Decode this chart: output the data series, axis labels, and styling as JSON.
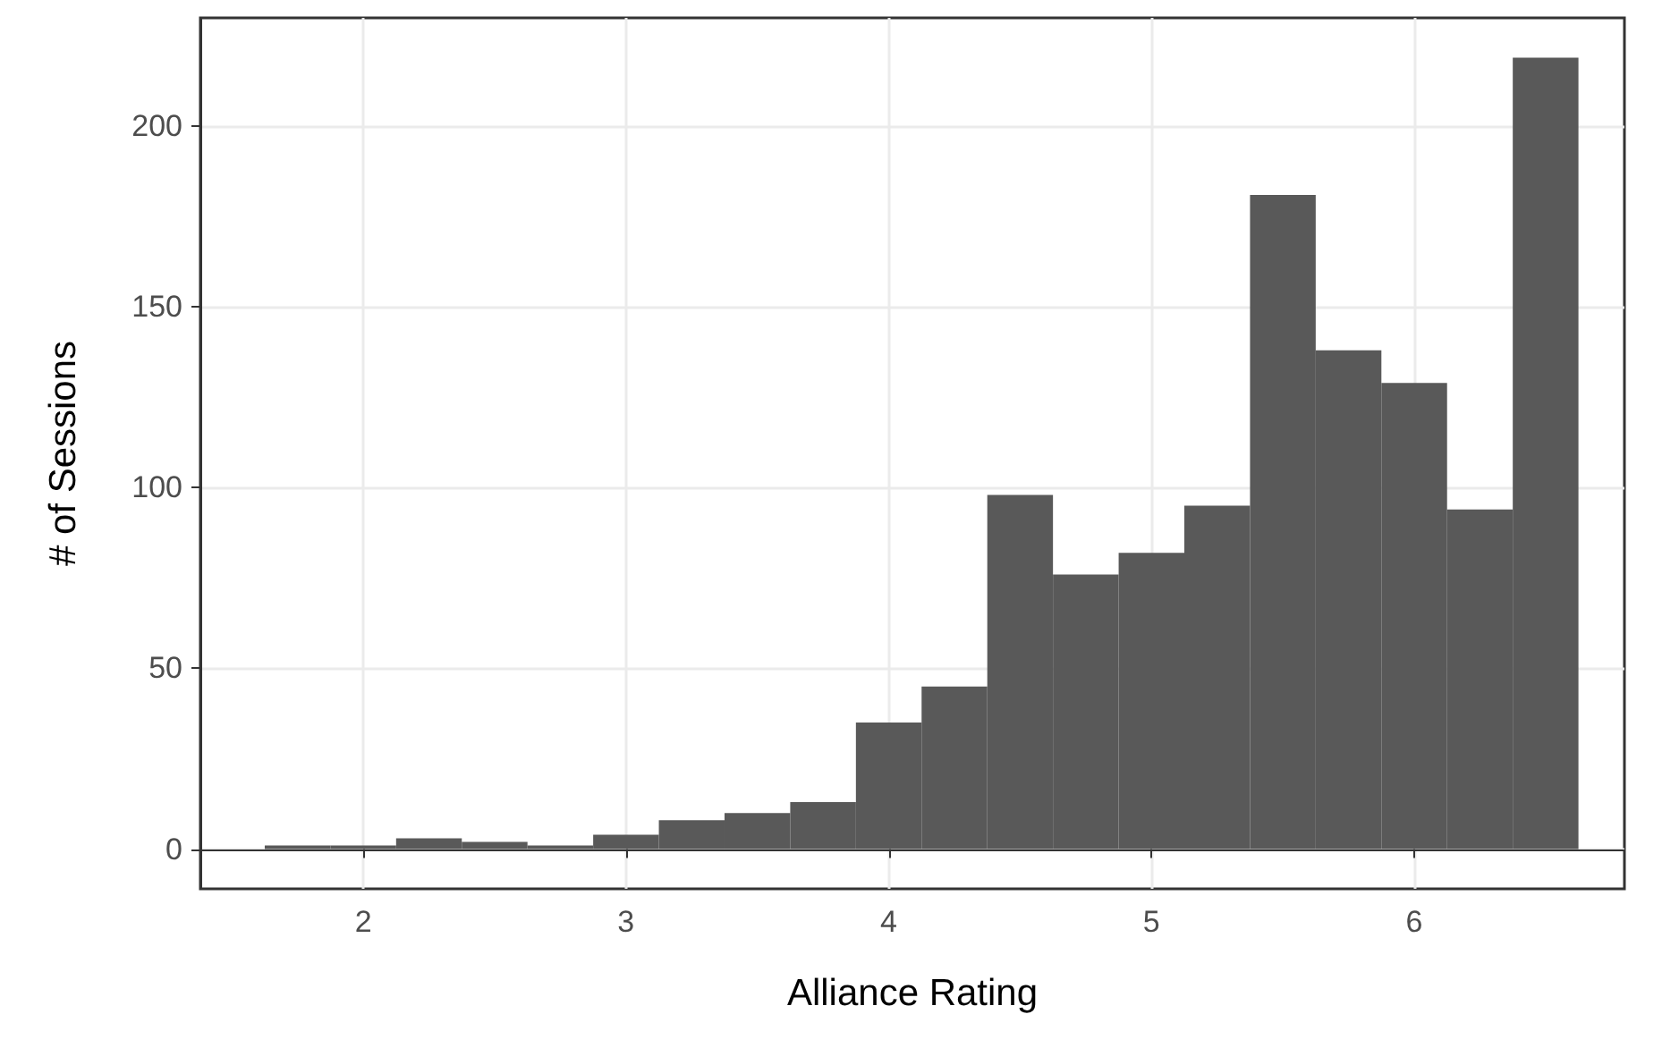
{
  "chart_data": {
    "type": "histogram",
    "xlabel": "Alliance Rating",
    "ylabel": "# of Sessions",
    "bins": [
      1.625,
      1.875,
      2.125,
      2.375,
      2.625,
      2.875,
      3.125,
      3.375,
      3.625,
      3.875,
      4.125,
      4.375,
      4.625,
      4.875,
      5.125,
      5.375,
      5.625,
      5.875,
      6.125,
      6.375,
      6.625
    ],
    "values": [
      1,
      1,
      3,
      2,
      1,
      4,
      8,
      10,
      13,
      35,
      45,
      98,
      76,
      82,
      95,
      181,
      138,
      129,
      94,
      219
    ],
    "color": "#595959",
    "xlim": [
      1.38,
      6.8
    ],
    "xticks": [
      2,
      3,
      4,
      5,
      6
    ],
    "ylim": [
      -11,
      230
    ],
    "yticks": [
      0,
      50,
      100,
      150,
      200
    ],
    "grid": true
  }
}
